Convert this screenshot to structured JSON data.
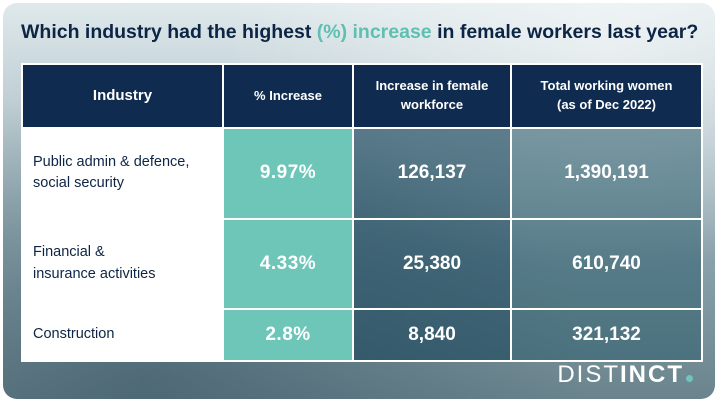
{
  "title": {
    "before": "Which industry had the highest ",
    "highlight": "(%) increase",
    "after": " in female workers last year?"
  },
  "table": {
    "headers": {
      "industry": "Industry",
      "pct": "% Increase",
      "increase_line1": "Increase in female",
      "increase_line2": "workforce",
      "total_line1": "Total working women",
      "total_line2": "(as of Dec 2022)"
    },
    "rows": [
      {
        "industry_line1": "Public admin & defence,",
        "industry_line2": "social security",
        "pct": "9.97%",
        "increase": "126,137",
        "total": "1,390,191"
      },
      {
        "industry_line1": "Financial &",
        "industry_line2": "insurance activities",
        "pct": "4.33%",
        "increase": "25,380",
        "total": "610,740"
      },
      {
        "industry_line1": "Construction",
        "industry_line2": "",
        "pct": "2.8%",
        "increase": "8,840",
        "total": "321,132"
      }
    ]
  },
  "brand": {
    "light": "DIST",
    "bold": "INCT"
  },
  "colors": {
    "navy": "#0f2b4f",
    "teal": "#6ec6b9",
    "title": "#0d2545"
  }
}
